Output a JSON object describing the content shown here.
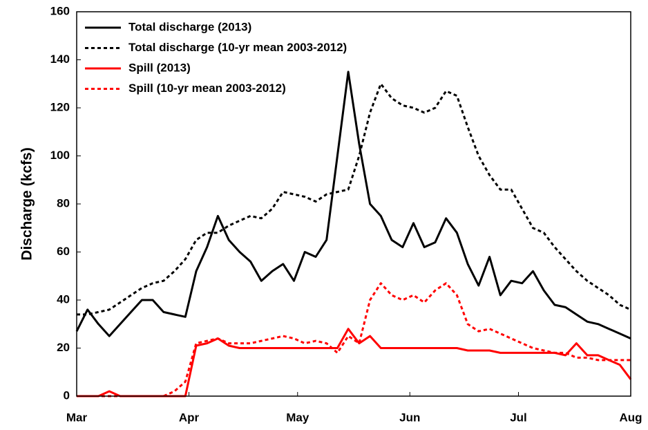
{
  "chart_data": {
    "type": "line",
    "ylabel": "Discharge (kcfs)",
    "xlim": [
      0,
      153
    ],
    "ylim": [
      0,
      160
    ],
    "xticks": [
      {
        "value": 0,
        "label": "Mar"
      },
      {
        "value": 31,
        "label": "Apr"
      },
      {
        "value": 61,
        "label": "May"
      },
      {
        "value": 92,
        "label": "Jun"
      },
      {
        "value": 122,
        "label": "Jul"
      },
      {
        "value": 153,
        "label": "Aug"
      }
    ],
    "yticks": [
      0,
      20,
      40,
      60,
      80,
      100,
      120,
      140,
      160
    ],
    "legend": "upper left",
    "x": [
      0,
      3,
      6,
      9,
      12,
      15,
      18,
      21,
      24,
      27,
      30,
      33,
      36,
      39,
      42,
      45,
      48,
      51,
      54,
      57,
      60,
      63,
      66,
      69,
      72,
      75,
      78,
      81,
      84,
      87,
      90,
      93,
      96,
      99,
      102,
      105,
      108,
      111,
      114,
      117,
      120,
      123,
      126,
      129,
      132,
      135,
      138,
      141,
      144,
      147,
      150,
      153
    ],
    "series": [
      {
        "name": "Total discharge (2013)",
        "color": "#000000",
        "style": "solid",
        "values": [
          27,
          36,
          30,
          25,
          30,
          35,
          40,
          40,
          35,
          34,
          33,
          52,
          62,
          75,
          65,
          60,
          56,
          48,
          52,
          55,
          48,
          60,
          58,
          65,
          100,
          135,
          105,
          80,
          75,
          65,
          62,
          72,
          62,
          64,
          74,
          68,
          55,
          46,
          58,
          42,
          48,
          47,
          52,
          44,
          38,
          37,
          34,
          31,
          30,
          28,
          26,
          24
        ]
      },
      {
        "name": "Total discharge (10-yr mean 2003-2012)",
        "color": "#000000",
        "style": "dotted",
        "values": [
          34,
          34,
          35,
          36,
          39,
          42,
          45,
          47,
          48,
          52,
          57,
          65,
          68,
          68,
          71,
          73,
          75,
          74,
          78,
          85,
          84,
          83,
          81,
          84,
          85,
          86,
          100,
          118,
          130,
          124,
          121,
          120,
          118,
          120,
          127,
          125,
          112,
          100,
          92,
          86,
          86,
          78,
          70,
          68,
          62,
          57,
          52,
          48,
          45,
          42,
          38,
          36
        ]
      },
      {
        "name": "Spill (2013)",
        "color": "#ff0000",
        "style": "solid",
        "values": [
          0,
          0,
          0,
          2,
          0,
          0,
          0,
          0,
          0,
          0,
          0,
          21,
          22,
          24,
          21,
          20,
          20,
          20,
          20,
          20,
          20,
          20,
          20,
          20,
          20,
          28,
          22,
          25,
          20,
          20,
          20,
          20,
          20,
          20,
          20,
          20,
          19,
          19,
          19,
          18,
          18,
          18,
          18,
          18,
          18,
          17,
          22,
          17,
          17,
          15,
          13,
          7
        ]
      },
      {
        "name": "Spill (10-yr mean 2003-2012)",
        "color": "#ff0000",
        "style": "dotted",
        "values": [
          0,
          0,
          0,
          0,
          0,
          0,
          0,
          0,
          0,
          2,
          6,
          22,
          23,
          24,
          22,
          22,
          22,
          23,
          24,
          25,
          24,
          22,
          23,
          22,
          18,
          25,
          22,
          40,
          47,
          42,
          40,
          42,
          39,
          44,
          47,
          42,
          30,
          27,
          28,
          26,
          24,
          22,
          20,
          19,
          18,
          18,
          16,
          16,
          15,
          15,
          15,
          15
        ]
      }
    ]
  }
}
